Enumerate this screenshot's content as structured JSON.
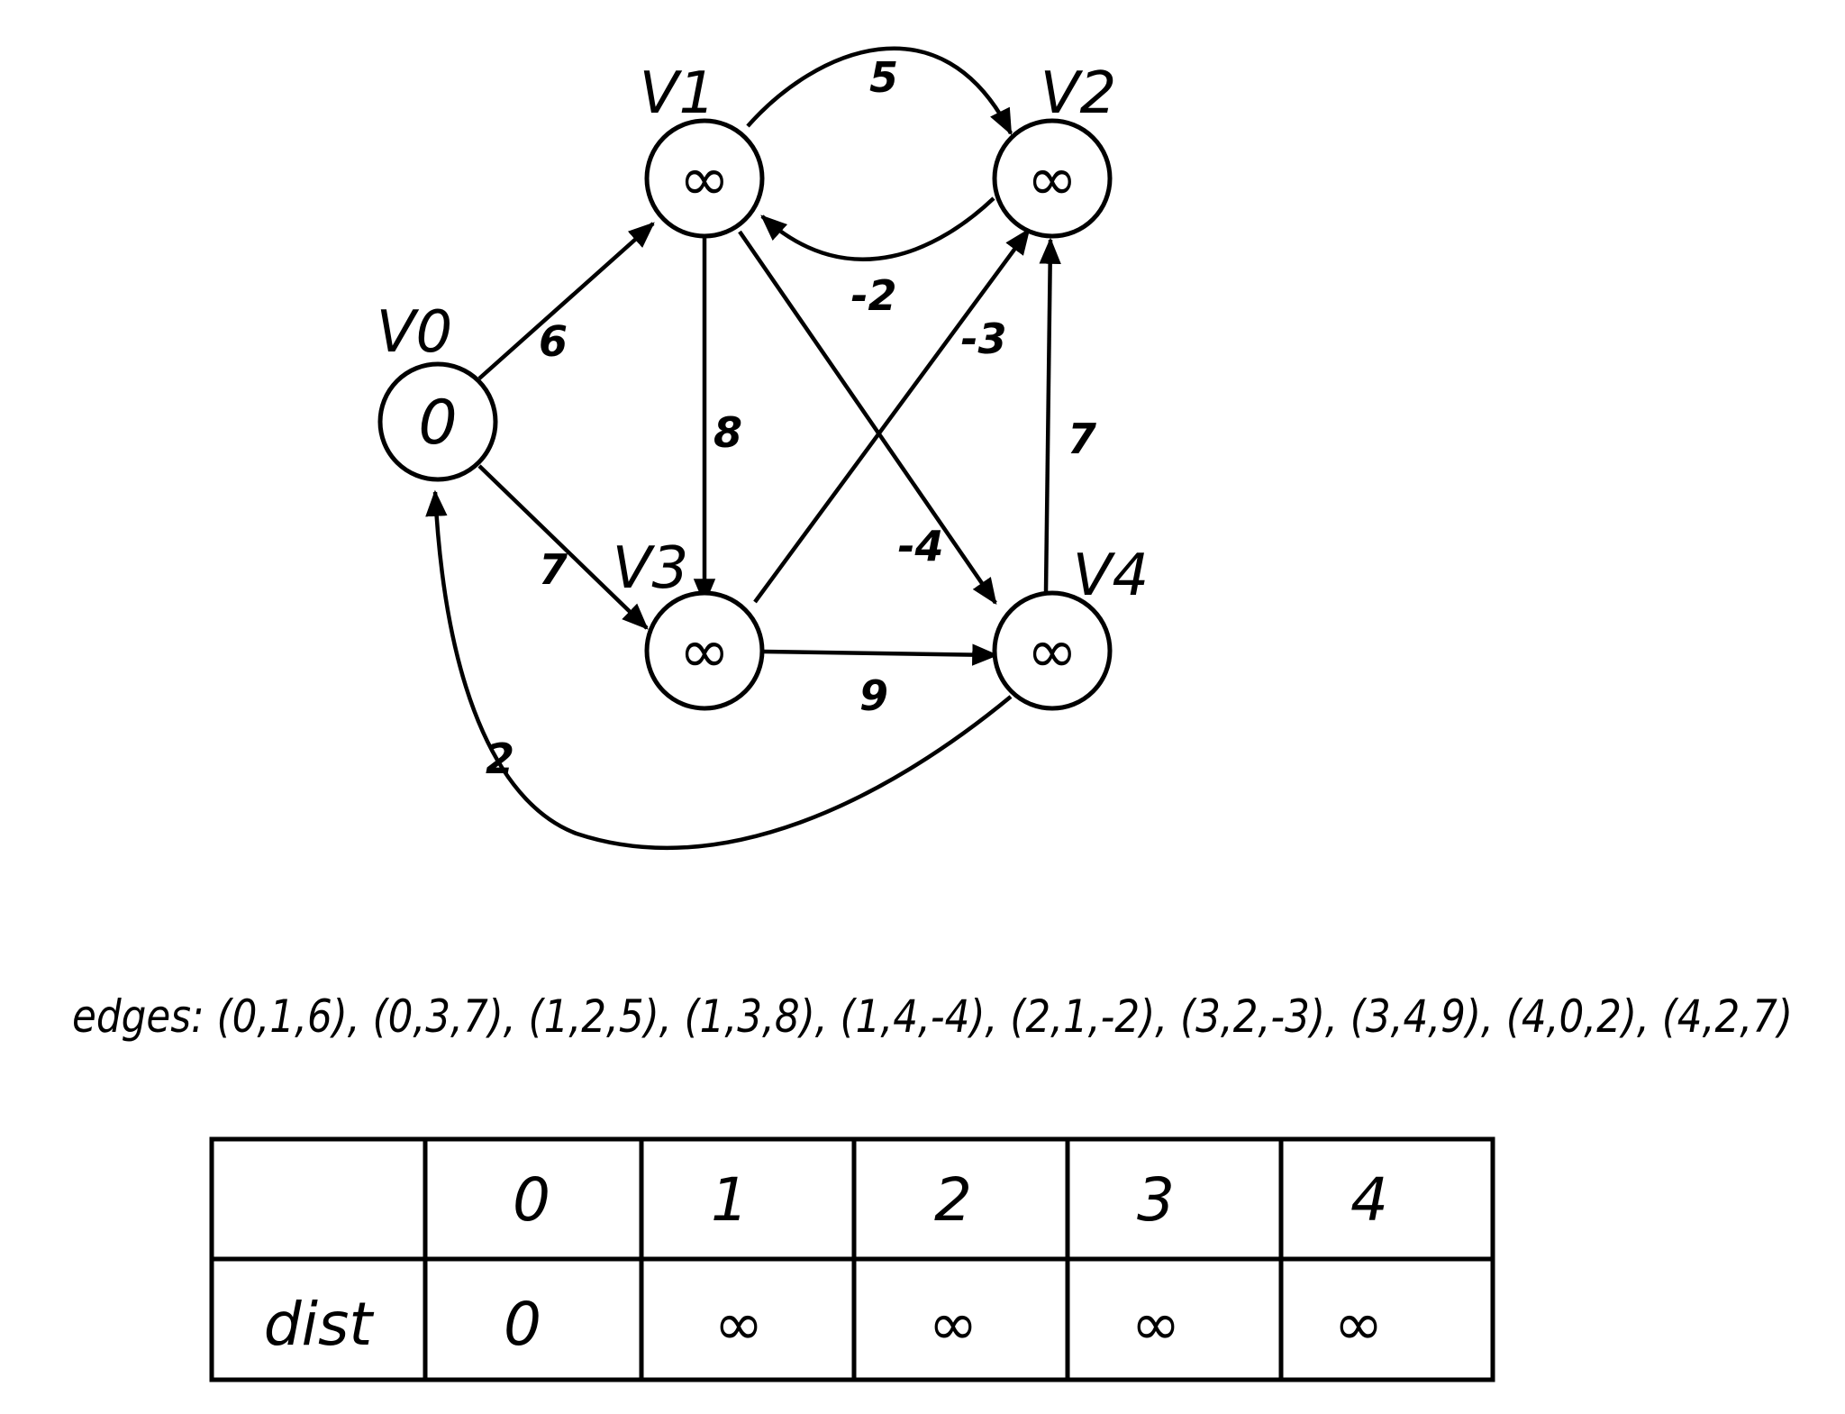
{
  "graph": {
    "nodes": [
      {
        "label": "V0",
        "dist": "0"
      },
      {
        "label": "V1",
        "dist": "∞"
      },
      {
        "label": "V2",
        "dist": "∞"
      },
      {
        "label": "V3",
        "dist": "∞"
      },
      {
        "label": "V4",
        "dist": "∞"
      }
    ],
    "edges": [
      {
        "from": 0,
        "to": 1,
        "weight": "6"
      },
      {
        "from": 0,
        "to": 3,
        "weight": "7"
      },
      {
        "from": 1,
        "to": 2,
        "weight": "5"
      },
      {
        "from": 1,
        "to": 3,
        "weight": "8"
      },
      {
        "from": 1,
        "to": 4,
        "weight": "-4"
      },
      {
        "from": 2,
        "to": 1,
        "weight": "-2"
      },
      {
        "from": 3,
        "to": 2,
        "weight": "-3"
      },
      {
        "from": 3,
        "to": 4,
        "weight": "9"
      },
      {
        "from": 4,
        "to": 0,
        "weight": "2"
      },
      {
        "from": 4,
        "to": 2,
        "weight": "7"
      }
    ]
  },
  "edges_list": {
    "text": "edges: (0,1,6), (0,3,7), (1,2,5), (1,3,8), (1,4,-4), (2,1,-2), (3,2,-3), (3,4,9), (4,0,2), (4,2,7)"
  },
  "dist_table": {
    "headers": [
      "",
      "0",
      "1",
      "2",
      "3",
      "4"
    ],
    "row_label": "dist",
    "values": [
      "0",
      "∞",
      "∞",
      "∞",
      "∞"
    ]
  }
}
